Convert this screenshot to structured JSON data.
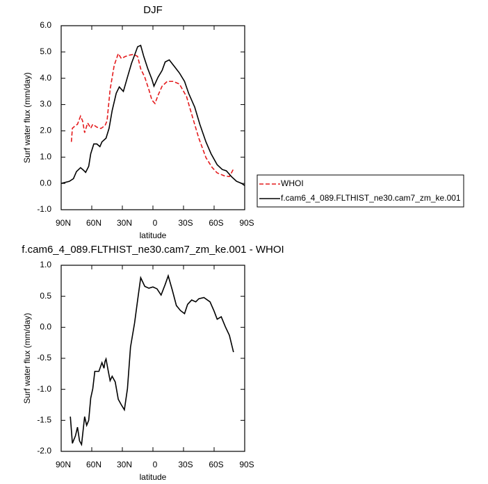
{
  "chart_data": [
    {
      "type": "line",
      "title": "DJF",
      "xlabel": "latitude",
      "ylabel": "Surf water flux (mm/day)",
      "xlim": [
        90,
        -90
      ],
      "xticks": [
        {
          "value": 90,
          "label": "90N"
        },
        {
          "value": 60,
          "label": "60N"
        },
        {
          "value": 30,
          "label": "30N"
        },
        0,
        {
          "value": -30,
          "label": "30S"
        },
        {
          "value": -60,
          "label": "60S"
        },
        {
          "value": -90,
          "label": "90S"
        }
      ],
      "ylim": [
        -1.0,
        6.0
      ],
      "yticks": [
        {
          "value": -1.0,
          "label": "-1.0"
        },
        {
          "value": 0.0,
          "label": "0.0"
        },
        {
          "value": 1.0,
          "label": "1.0"
        },
        {
          "value": 2.0,
          "label": "2.0"
        },
        {
          "value": 3.0,
          "label": "3.0"
        },
        {
          "value": 4.0,
          "label": "4.0"
        },
        {
          "value": 5.0,
          "label": "5.0"
        },
        {
          "value": 6.0,
          "label": "6.0"
        }
      ],
      "legend": "right",
      "series": [
        {
          "name": "WHOI",
          "color": "#e41a1c",
          "dash": true,
          "x": [
            80,
            79,
            76,
            74,
            71,
            69,
            67,
            64,
            61,
            59,
            55,
            51,
            47,
            45,
            42,
            38,
            34,
            31,
            27,
            23,
            19,
            15,
            12,
            8,
            4,
            1,
            -2,
            -5,
            -9,
            -14,
            -20,
            -26,
            -33,
            -39,
            -45,
            -52,
            -58,
            -63,
            -70,
            -75,
            -79
          ],
          "values": [
            1.58,
            2.1,
            2.2,
            2.25,
            2.56,
            2.38,
            1.93,
            2.3,
            2.1,
            2.25,
            2.14,
            2.09,
            2.2,
            2.38,
            3.57,
            4.49,
            4.94,
            4.75,
            4.83,
            4.88,
            4.91,
            4.83,
            4.36,
            4.04,
            3.57,
            3.17,
            3.04,
            3.35,
            3.7,
            3.88,
            3.88,
            3.78,
            3.3,
            2.5,
            1.72,
            0.98,
            0.61,
            0.4,
            0.29,
            0.26,
            0.55
          ]
        },
        {
          "name": "f.cam6_4_089.FLTHIST_ne30.cam7_zm_ke.001",
          "color": "#000000",
          "dash": false,
          "x": [
            90,
            82,
            78,
            75,
            71,
            68,
            66,
            63,
            61,
            58,
            55,
            52,
            50,
            46,
            43,
            40,
            36,
            33,
            29,
            25,
            21,
            18,
            15,
            12,
            9,
            5,
            1,
            -1,
            -5,
            -9,
            -12,
            -16,
            -20,
            -26,
            -31,
            -35,
            -41,
            -46,
            -52,
            -57,
            -63,
            -68,
            -72,
            -77,
            -82,
            -87,
            -90
          ],
          "values": [
            0.0,
            0.08,
            0.18,
            0.45,
            0.6,
            0.5,
            0.42,
            0.65,
            1.13,
            1.5,
            1.5,
            1.4,
            1.58,
            1.72,
            2.1,
            2.77,
            3.43,
            3.67,
            3.5,
            4.04,
            4.57,
            4.88,
            5.2,
            5.25,
            4.83,
            4.36,
            3.96,
            3.7,
            4.04,
            4.3,
            4.62,
            4.7,
            4.5,
            4.2,
            3.88,
            3.43,
            2.9,
            2.25,
            1.58,
            1.13,
            0.71,
            0.53,
            0.48,
            0.26,
            0.08,
            0.0,
            -0.08
          ]
        }
      ]
    },
    {
      "type": "line",
      "title": "f.cam6_4_089.FLTHIST_ne30.cam7_zm_ke.001 - WHOI",
      "xlabel": "latitude",
      "ylabel": "Surf water flux (mm/day)",
      "xlim": [
        90,
        -90
      ],
      "xticks": [
        {
          "value": 90,
          "label": "90N"
        },
        {
          "value": 60,
          "label": "60N"
        },
        {
          "value": 30,
          "label": "30N"
        },
        0,
        {
          "value": -30,
          "label": "30S"
        },
        {
          "value": -60,
          "label": "60S"
        },
        {
          "value": -90,
          "label": "90S"
        }
      ],
      "ylim": [
        -2.0,
        1.0
      ],
      "yticks": [
        {
          "value": -2.0,
          "label": "-2.0"
        },
        -1.5,
        {
          "value": -1.0,
          "label": "-1.0"
        },
        -0.5,
        {
          "value": 0.0,
          "label": "0.0"
        },
        0.5,
        {
          "value": 1.0,
          "label": "1.0"
        }
      ],
      "series": [
        {
          "color": "#000000",
          "dash": false,
          "x": [
            81,
            79,
            76,
            74,
            72,
            70,
            67,
            65,
            63,
            61,
            59,
            57,
            53,
            50,
            48,
            47,
            46,
            44,
            42,
            40,
            37,
            34,
            31,
            28,
            25,
            22,
            18,
            15,
            12,
            8,
            4,
            0,
            -4,
            -8,
            -12,
            -15,
            -19,
            -23,
            -27,
            -31,
            -34,
            -38,
            -42,
            -45,
            -50,
            -56,
            -60,
            -63,
            -67,
            -71,
            -75,
            -79
          ],
          "values": [
            -1.44,
            -1.87,
            -1.75,
            -1.61,
            -1.83,
            -1.89,
            -1.44,
            -1.58,
            -1.5,
            -1.14,
            -0.99,
            -0.71,
            -0.71,
            -0.57,
            -0.66,
            -0.55,
            -0.51,
            -0.69,
            -0.86,
            -0.79,
            -0.88,
            -1.16,
            -1.25,
            -1.33,
            -0.99,
            -0.32,
            0.07,
            0.44,
            0.8,
            0.66,
            0.63,
            0.65,
            0.62,
            0.52,
            0.69,
            0.83,
            0.6,
            0.35,
            0.27,
            0.22,
            0.37,
            0.44,
            0.41,
            0.46,
            0.48,
            0.41,
            0.26,
            0.13,
            0.17,
            0.01,
            -0.13,
            -0.4
          ]
        }
      ]
    }
  ]
}
